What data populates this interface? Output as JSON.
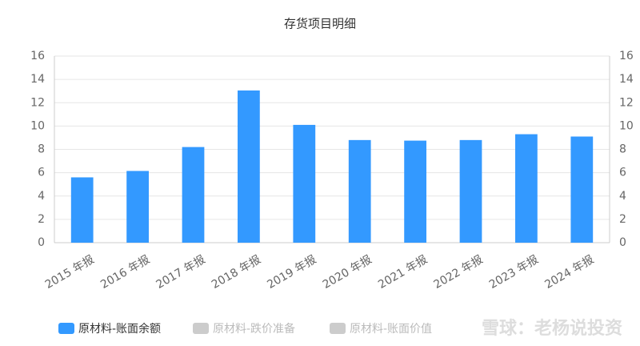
{
  "chart_data": {
    "type": "bar",
    "title": "存货项目明细",
    "categories": [
      "2015 年报",
      "2016 年报",
      "2017 年报",
      "2018 年报",
      "2019 年报",
      "2020 年报",
      "2021 年报",
      "2022 年报",
      "2023 年报",
      "2024 年报"
    ],
    "series": [
      {
        "name": "原材料-账面余额",
        "color": "#3399ff",
        "values": [
          5.6,
          6.15,
          8.2,
          13.05,
          10.1,
          8.8,
          8.75,
          8.8,
          9.3,
          9.1
        ]
      },
      {
        "name": "原材料-跌价准备",
        "color": "#cccccc",
        "values": [
          null,
          null,
          null,
          null,
          null,
          null,
          null,
          null,
          null,
          null
        ]
      },
      {
        "name": "原材料-账面价值",
        "color": "#cccccc",
        "values": [
          null,
          null,
          null,
          null,
          null,
          null,
          null,
          null,
          null,
          null
        ]
      }
    ],
    "ylim": [
      0,
      16
    ],
    "yticks": [
      0,
      2,
      4,
      6,
      8,
      10,
      12,
      14,
      16
    ],
    "y2lim": [
      0,
      16
    ],
    "y2ticks": [
      0,
      2,
      4,
      6,
      8,
      10,
      12,
      14,
      16
    ],
    "grid": true,
    "legend": "bottom",
    "watermark": "雪球：老杨说投资"
  }
}
